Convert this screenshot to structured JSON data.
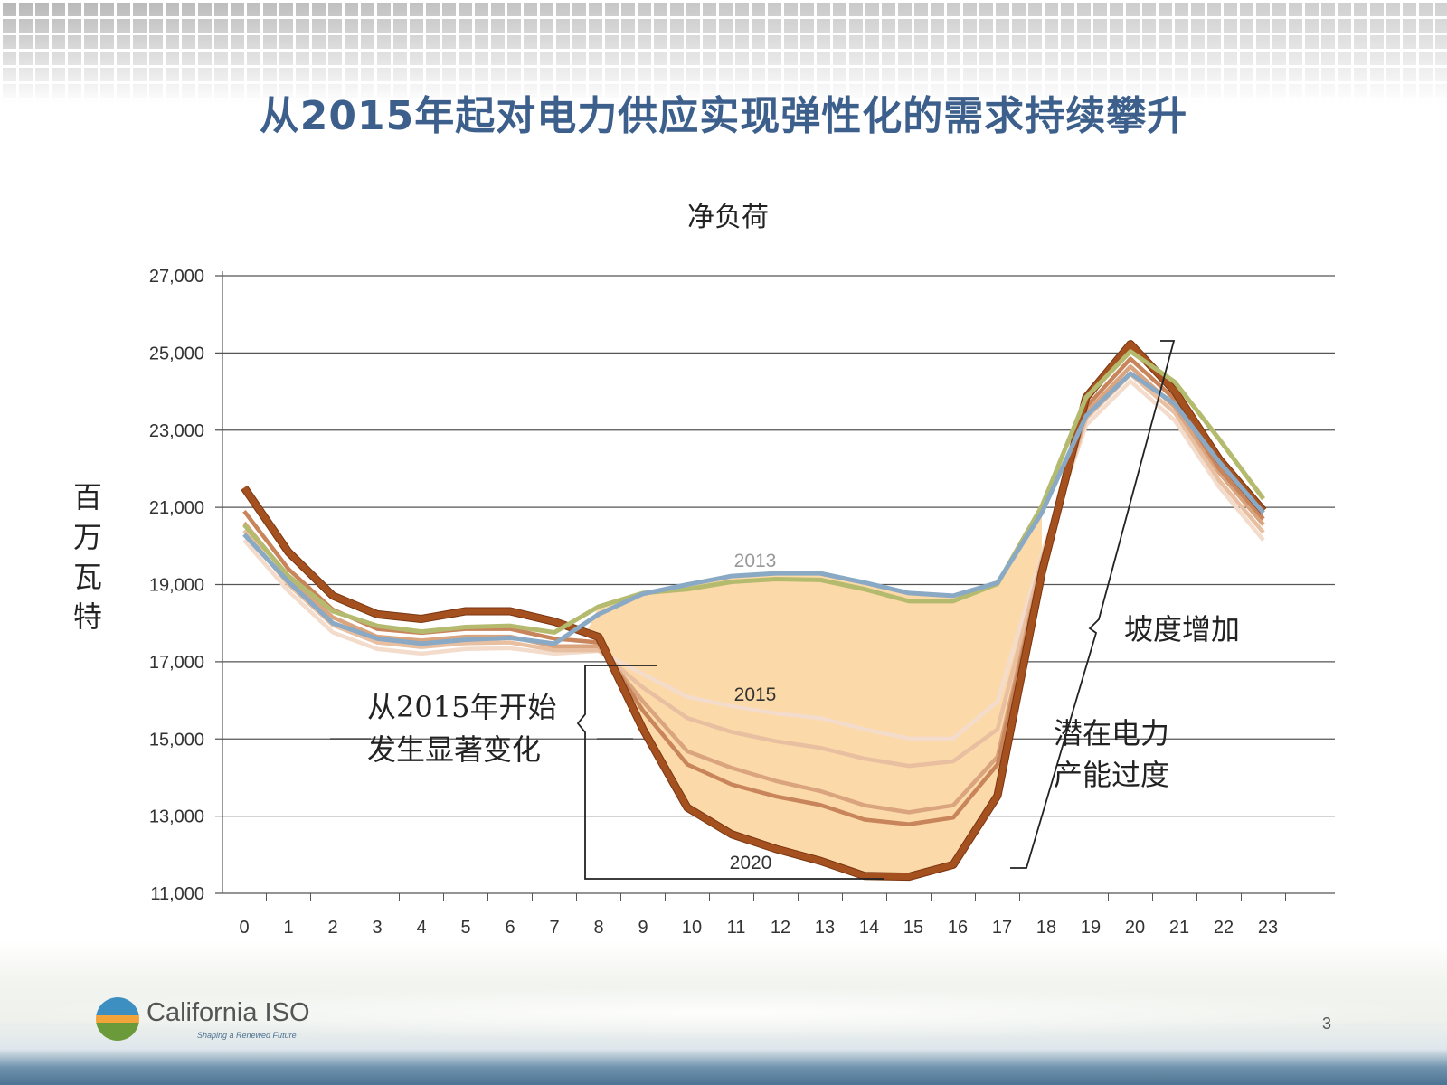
{
  "slide": {
    "title": "从2015年起对电力供应实现弹性化的需求持续攀升",
    "page_number": "3",
    "logo": {
      "name": "California ISO",
      "tagline": "Shaping a Renewed Future"
    }
  },
  "colors": {
    "title": "#3d5f8c",
    "fill": "#fcd9a8"
  },
  "chart_data": {
    "type": "line",
    "title": "净负荷",
    "ylabel": "百万瓦特",
    "xlabel": "",
    "ylim": [
      11000,
      27000
    ],
    "yticks": [
      "27,000",
      "25,000",
      "23,000",
      "21,000",
      "19,000",
      "17,000",
      "15,000",
      "13,000",
      "11,000"
    ],
    "ytick_values": [
      27000,
      25000,
      23000,
      21000,
      19000,
      17000,
      15000,
      13000,
      11000
    ],
    "x": [
      0,
      1,
      2,
      3,
      4,
      5,
      6,
      7,
      8,
      9,
      10,
      11,
      12,
      13,
      14,
      15,
      16,
      17,
      18,
      19,
      20,
      21,
      22,
      23
    ],
    "xticks": [
      "0",
      "1",
      "2",
      "3",
      "4",
      "5",
      "6",
      "7",
      "8",
      "9",
      "10",
      "11",
      "12",
      "13",
      "14",
      "15",
      "16",
      "17",
      "18",
      "19",
      "20",
      "21",
      "22",
      "23"
    ],
    "grid": true,
    "series": [
      {
        "name": "2013",
        "color": "#8aa9c4",
        "values": [
          20300,
          19070,
          18000,
          17600,
          17470,
          17570,
          17620,
          17470,
          18230,
          18760,
          19000,
          19220,
          19290,
          19290,
          19050,
          18780,
          18710,
          19050,
          20860,
          23370,
          24470,
          23680,
          22180,
          20860
        ]
      },
      {
        "color": "#b5bb6e",
        "values": [
          20550,
          19220,
          18310,
          17930,
          17780,
          17900,
          17930,
          17760,
          18430,
          18780,
          18880,
          19070,
          19140,
          19120,
          18880,
          18570,
          18570,
          19020,
          21030,
          23850,
          25040,
          24250,
          22770,
          21220
        ]
      },
      {
        "name": "2015",
        "color": "#f3dccb",
        "values": [
          20150,
          18830,
          17760,
          17330,
          17210,
          17330,
          17350,
          17210,
          17280,
          16680,
          16090,
          15850,
          15660,
          15540,
          15250,
          15010,
          15010,
          15970,
          19790,
          23130,
          24270,
          23250,
          21530,
          20150
        ]
      },
      {
        "color": "#e8bfa0",
        "values": [
          20400,
          19000,
          17950,
          17500,
          17380,
          17480,
          17500,
          17300,
          17300,
          16330,
          15540,
          15180,
          14940,
          14770,
          14490,
          14300,
          14420,
          15250,
          19670,
          23300,
          24450,
          23450,
          21700,
          20350
        ]
      },
      {
        "color": "#d9a47e",
        "values": [
          20600,
          19200,
          18150,
          17650,
          17550,
          17650,
          17650,
          17400,
          17400,
          15970,
          14680,
          14250,
          13910,
          13650,
          13280,
          13100,
          13280,
          14540,
          19550,
          23450,
          24650,
          23600,
          21900,
          20550
        ]
      },
      {
        "color": "#c8845a",
        "values": [
          20900,
          19400,
          18350,
          17850,
          17750,
          17850,
          17850,
          17600,
          17500,
          15730,
          14340,
          13820,
          13510,
          13290,
          12910,
          12790,
          12960,
          14340,
          19450,
          23600,
          24850,
          23800,
          22000,
          20700
        ]
      },
      {
        "name": "2020",
        "color": "#a5501f",
        "values": [
          21510,
          19840,
          18710,
          18230,
          18110,
          18310,
          18310,
          18040,
          17640,
          15250,
          13220,
          12530,
          12150,
          11840,
          11450,
          11430,
          11740,
          13530,
          19310,
          23850,
          25230,
          24010,
          22250,
          20910
        ]
      }
    ],
    "annotations": {
      "change": [
        "从2015年开始",
        "发生显著变化"
      ],
      "ramp": "坡度增加",
      "overgen": [
        "潜在电力",
        "产能过度"
      ]
    }
  }
}
